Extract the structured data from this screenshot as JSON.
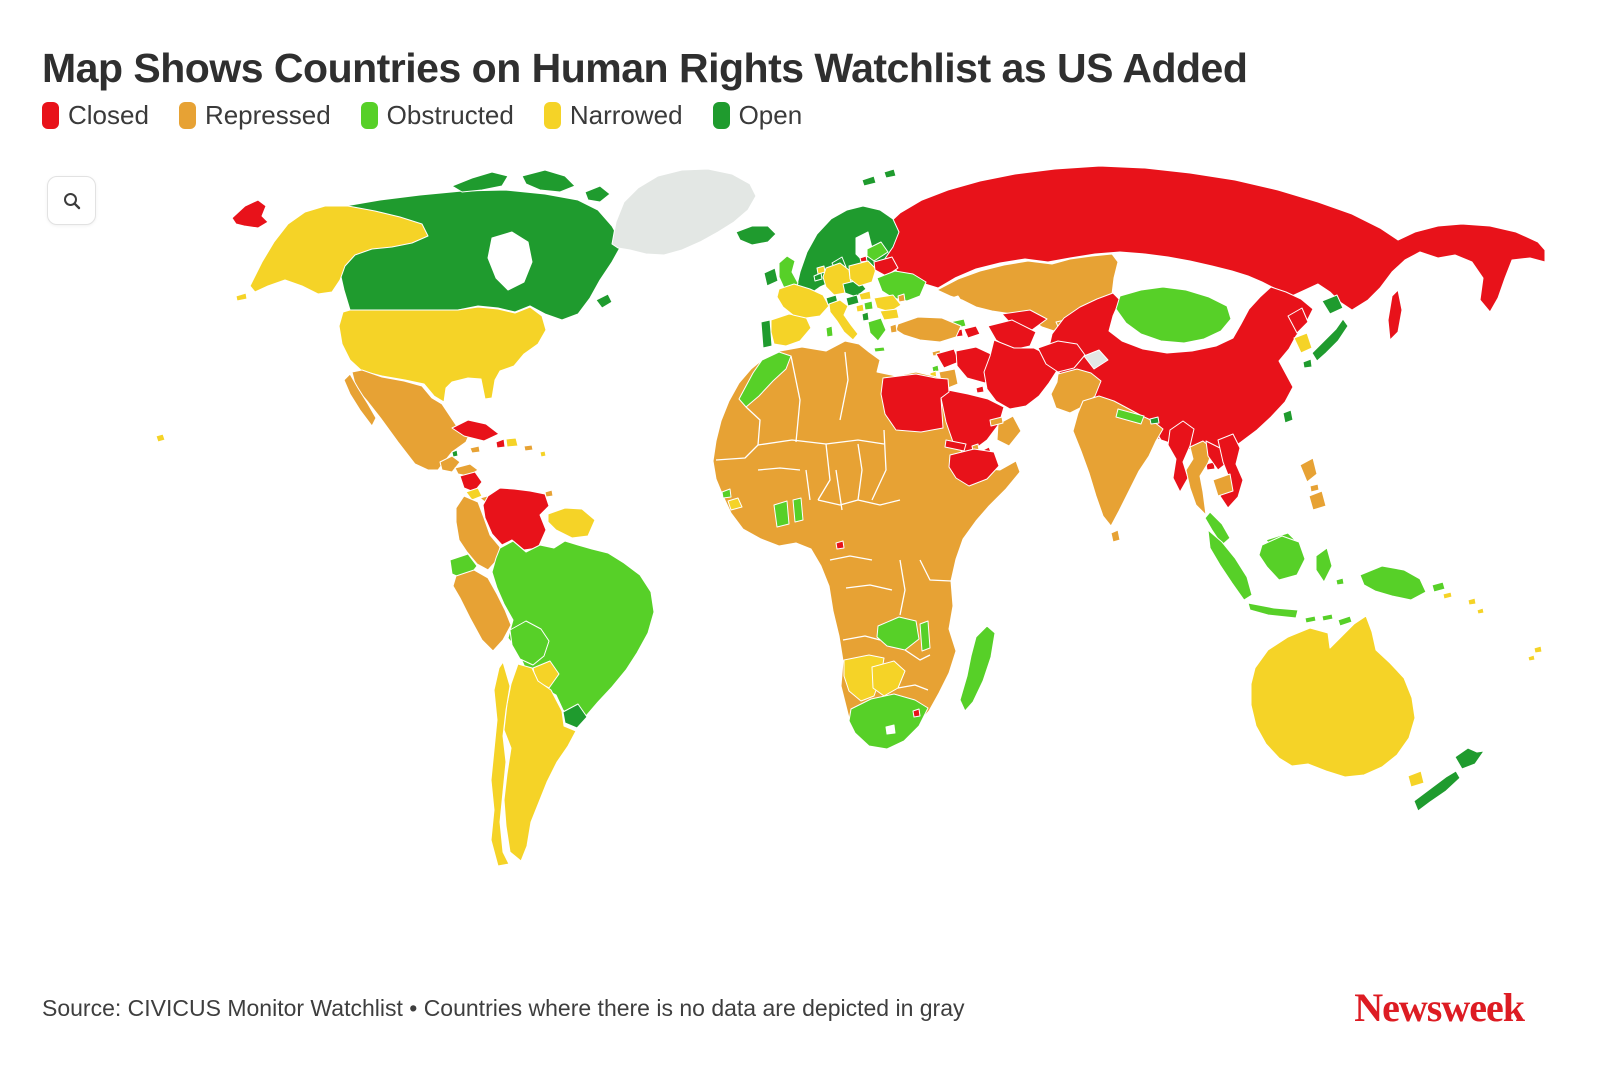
{
  "title": "Map Shows Countries on Human Rights Watchlist as US Added",
  "legend": {
    "items": [
      {
        "label": "Closed",
        "category": "closed"
      },
      {
        "label": "Repressed",
        "category": "repressed"
      },
      {
        "label": "Obstructed",
        "category": "obstructed"
      },
      {
        "label": "Narrowed",
        "category": "narrowed"
      },
      {
        "label": "Open",
        "category": "open"
      }
    ]
  },
  "categories": {
    "closed": "#e8121a",
    "repressed": "#e7a234",
    "obstructed": "#57d028",
    "narrowed": "#f5d327",
    "open": "#1f9b2e",
    "no_data": "#e3e7e4"
  },
  "map": {
    "regions": [
      {
        "id": "chukotka",
        "category": "closed"
      },
      {
        "id": "russia",
        "category": "closed"
      },
      {
        "id": "sakhalin",
        "category": "closed"
      },
      {
        "id": "kaliningrad",
        "category": "closed"
      },
      {
        "id": "belarus",
        "category": "closed"
      },
      {
        "id": "armenia",
        "category": "closed"
      },
      {
        "id": "azerbaijan",
        "category": "closed"
      },
      {
        "id": "uzbekistan",
        "category": "closed"
      },
      {
        "id": "turkmenistan",
        "category": "closed"
      },
      {
        "id": "tajikistan",
        "category": "closed"
      },
      {
        "id": "china",
        "category": "closed"
      },
      {
        "id": "hainan",
        "category": "closed"
      },
      {
        "id": "north-korea",
        "category": "closed"
      },
      {
        "id": "myanmar",
        "category": "closed"
      },
      {
        "id": "laos",
        "category": "closed"
      },
      {
        "id": "vietnam",
        "category": "closed"
      },
      {
        "id": "afghanistan",
        "category": "closed"
      },
      {
        "id": "iran",
        "category": "closed"
      },
      {
        "id": "iraq",
        "category": "closed"
      },
      {
        "id": "syria",
        "category": "closed"
      },
      {
        "id": "kuwait",
        "category": "closed"
      },
      {
        "id": "qatar",
        "category": "closed"
      },
      {
        "id": "saudi-arabia",
        "category": "closed"
      },
      {
        "id": "yemen",
        "category": "closed"
      },
      {
        "id": "egypt",
        "category": "closed"
      },
      {
        "id": "eritrea",
        "category": "closed"
      },
      {
        "id": "ethiopia",
        "category": "closed"
      },
      {
        "id": "equatorial-guinea",
        "category": "closed"
      },
      {
        "id": "eswatini",
        "category": "closed"
      },
      {
        "id": "cuba",
        "category": "closed"
      },
      {
        "id": "haiti",
        "category": "closed"
      },
      {
        "id": "nicaragua",
        "category": "closed"
      },
      {
        "id": "venezuela",
        "category": "closed"
      },
      {
        "id": "kazakhstan",
        "category": "repressed"
      },
      {
        "id": "kyrgyzstan",
        "category": "repressed"
      },
      {
        "id": "turkey",
        "category": "repressed"
      },
      {
        "id": "cyprus",
        "category": "repressed"
      },
      {
        "id": "jordan",
        "category": "repressed"
      },
      {
        "id": "oman",
        "category": "repressed"
      },
      {
        "id": "uae",
        "category": "repressed"
      },
      {
        "id": "djibouti",
        "category": "repressed"
      },
      {
        "id": "pakistan",
        "category": "repressed"
      },
      {
        "id": "india",
        "category": "repressed"
      },
      {
        "id": "sri-lanka",
        "category": "repressed"
      },
      {
        "id": "thailand",
        "category": "repressed"
      },
      {
        "id": "cambodia",
        "category": "repressed"
      },
      {
        "id": "philippines",
        "category": "repressed"
      },
      {
        "id": "mexico",
        "category": "repressed"
      },
      {
        "id": "guatemala",
        "category": "repressed"
      },
      {
        "id": "honduras",
        "category": "repressed"
      },
      {
        "id": "panama",
        "category": "repressed"
      },
      {
        "id": "jamaica",
        "category": "repressed"
      },
      {
        "id": "puerto-rico",
        "category": "repressed"
      },
      {
        "id": "trinidad",
        "category": "repressed"
      },
      {
        "id": "colombia",
        "category": "repressed"
      },
      {
        "id": "peru",
        "category": "repressed"
      },
      {
        "id": "moldova",
        "category": "repressed"
      },
      {
        "id": "africa",
        "category": "repressed"
      },
      {
        "id": "uk",
        "category": "obstructed"
      },
      {
        "id": "baltics",
        "category": "obstructed"
      },
      {
        "id": "ukraine",
        "category": "obstructed"
      },
      {
        "id": "georgia",
        "category": "obstructed"
      },
      {
        "id": "greece",
        "category": "obstructed"
      },
      {
        "id": "crete",
        "category": "obstructed"
      },
      {
        "id": "serbia",
        "category": "obstructed"
      },
      {
        "id": "sardinia",
        "category": "obstructed"
      },
      {
        "id": "lebanon",
        "category": "obstructed"
      },
      {
        "id": "morocco",
        "category": "obstructed"
      },
      {
        "id": "ghana",
        "category": "obstructed"
      },
      {
        "id": "togo-benin",
        "category": "obstructed"
      },
      {
        "id": "sierra-leone",
        "category": "obstructed"
      },
      {
        "id": "zambia",
        "category": "obstructed"
      },
      {
        "id": "malawi",
        "category": "obstructed"
      },
      {
        "id": "south-africa",
        "category": "obstructed"
      },
      {
        "id": "madagascar",
        "category": "obstructed"
      },
      {
        "id": "ecuador",
        "category": "obstructed"
      },
      {
        "id": "brazil",
        "category": "obstructed"
      },
      {
        "id": "bolivia",
        "category": "obstructed"
      },
      {
        "id": "mongolia",
        "category": "obstructed"
      },
      {
        "id": "nepal",
        "category": "obstructed"
      },
      {
        "id": "malaysia",
        "category": "obstructed"
      },
      {
        "id": "indonesia",
        "category": "obstructed"
      },
      {
        "id": "timor-leste",
        "category": "obstructed"
      },
      {
        "id": "papua-new-guinea",
        "category": "obstructed"
      },
      {
        "id": "alaska",
        "category": "narrowed"
      },
      {
        "id": "usa",
        "category": "narrowed"
      },
      {
        "id": "hawaii",
        "category": "narrowed"
      },
      {
        "id": "costa-rica",
        "category": "narrowed"
      },
      {
        "id": "dominican-republic",
        "category": "narrowed"
      },
      {
        "id": "lesser-antilles",
        "category": "narrowed"
      },
      {
        "id": "guyanas",
        "category": "narrowed"
      },
      {
        "id": "paraguay",
        "category": "narrowed"
      },
      {
        "id": "chile",
        "category": "narrowed"
      },
      {
        "id": "argentina",
        "category": "narrowed"
      },
      {
        "id": "liberia",
        "category": "narrowed"
      },
      {
        "id": "namibia",
        "category": "narrowed"
      },
      {
        "id": "botswana",
        "category": "narrowed"
      },
      {
        "id": "netherlands",
        "category": "narrowed"
      },
      {
        "id": "france",
        "category": "narrowed"
      },
      {
        "id": "spain",
        "category": "narrowed"
      },
      {
        "id": "germany",
        "category": "narrowed"
      },
      {
        "id": "poland",
        "category": "narrowed"
      },
      {
        "id": "hungary",
        "category": "narrowed"
      },
      {
        "id": "bosnia",
        "category": "narrowed"
      },
      {
        "id": "romania",
        "category": "narrowed"
      },
      {
        "id": "bulgaria",
        "category": "narrowed"
      },
      {
        "id": "italy",
        "category": "narrowed"
      },
      {
        "id": "sicily",
        "category": "narrowed"
      },
      {
        "id": "israel",
        "category": "narrowed"
      },
      {
        "id": "south-korea",
        "category": "narrowed"
      },
      {
        "id": "australia",
        "category": "narrowed"
      },
      {
        "id": "tasmania",
        "category": "narrowed"
      },
      {
        "id": "fiji",
        "category": "narrowed"
      },
      {
        "id": "pacific-islands",
        "category": "narrowed"
      },
      {
        "id": "canada",
        "category": "open"
      },
      {
        "id": "arctic-islands",
        "category": "open"
      },
      {
        "id": "newfoundland",
        "category": "open"
      },
      {
        "id": "iceland",
        "category": "open"
      },
      {
        "id": "ireland",
        "category": "open"
      },
      {
        "id": "portugal",
        "category": "open"
      },
      {
        "id": "denmark",
        "category": "open"
      },
      {
        "id": "belgium",
        "category": "open"
      },
      {
        "id": "switzerland",
        "category": "open"
      },
      {
        "id": "czech-austria",
        "category": "open"
      },
      {
        "id": "croatia-slovenia",
        "category": "open"
      },
      {
        "id": "albania-montenegro",
        "category": "open"
      },
      {
        "id": "scandinavia",
        "category": "open"
      },
      {
        "id": "svalbard",
        "category": "open"
      },
      {
        "id": "belize",
        "category": "open"
      },
      {
        "id": "uruguay",
        "category": "open"
      },
      {
        "id": "japan",
        "category": "open"
      },
      {
        "id": "taiwan",
        "category": "open"
      },
      {
        "id": "bhutan",
        "category": "open"
      },
      {
        "id": "new-zealand",
        "category": "open"
      },
      {
        "id": "greenland",
        "category": "no_data"
      },
      {
        "id": "kashmir",
        "category": "no_data"
      }
    ]
  },
  "footer": {
    "source": "Source: CIVICUS Monitor Watchlist • Countries where there is no data are depicted in gray",
    "brand": "Newsweek"
  }
}
